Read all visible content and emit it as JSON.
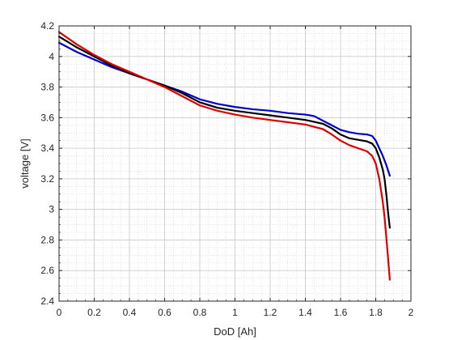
{
  "chart_data": {
    "type": "line",
    "title": "",
    "xlabel": "DoD [Ah]",
    "ylabel": "voltage [V]",
    "xlim": [
      0,
      2
    ],
    "ylim": [
      2.4,
      4.2
    ],
    "xticks": [
      "0",
      "0.2",
      "0.4",
      "0.6",
      "0.8",
      "1",
      "1.2",
      "1.4",
      "1.6",
      "1.8",
      "2"
    ],
    "yticks": [
      "2.4",
      "2.6",
      "2.8",
      "3",
      "3.2",
      "3.4",
      "3.6",
      "3.8",
      "4",
      "4.2"
    ],
    "grid": true,
    "minor_grid": true,
    "legend": "none",
    "series": [
      {
        "color": "#0000cc",
        "x": [
          0,
          0.1,
          0.2,
          0.3,
          0.4,
          0.5,
          0.6,
          0.7,
          0.8,
          0.9,
          1.0,
          1.1,
          1.2,
          1.3,
          1.4,
          1.45,
          1.5,
          1.55,
          1.6,
          1.65,
          1.7,
          1.75,
          1.78,
          1.8,
          1.82,
          1.84,
          1.86,
          1.88
        ],
        "y": [
          4.09,
          4.03,
          3.98,
          3.93,
          3.89,
          3.85,
          3.81,
          3.77,
          3.72,
          3.69,
          3.67,
          3.655,
          3.645,
          3.63,
          3.62,
          3.61,
          3.58,
          3.55,
          3.52,
          3.505,
          3.495,
          3.49,
          3.48,
          3.45,
          3.4,
          3.35,
          3.29,
          3.22
        ]
      },
      {
        "color": "#000000",
        "x": [
          0,
          0.1,
          0.2,
          0.3,
          0.4,
          0.5,
          0.6,
          0.7,
          0.8,
          0.9,
          1.0,
          1.1,
          1.2,
          1.3,
          1.4,
          1.5,
          1.55,
          1.6,
          1.65,
          1.7,
          1.75,
          1.78,
          1.8,
          1.82,
          1.84,
          1.85,
          1.86,
          1.87,
          1.88
        ],
        "y": [
          4.13,
          4.06,
          4.0,
          3.94,
          3.89,
          3.85,
          3.81,
          3.76,
          3.7,
          3.665,
          3.645,
          3.63,
          3.615,
          3.6,
          3.585,
          3.56,
          3.53,
          3.49,
          3.465,
          3.455,
          3.445,
          3.43,
          3.4,
          3.34,
          3.26,
          3.2,
          3.1,
          2.98,
          2.88
        ]
      },
      {
        "color": "#dd0000",
        "x": [
          0,
          0.1,
          0.2,
          0.3,
          0.4,
          0.5,
          0.6,
          0.7,
          0.8,
          0.9,
          1.0,
          1.1,
          1.2,
          1.3,
          1.4,
          1.5,
          1.55,
          1.6,
          1.65,
          1.7,
          1.75,
          1.78,
          1.8,
          1.82,
          1.84,
          1.85,
          1.86,
          1.87,
          1.88
        ],
        "y": [
          4.16,
          4.08,
          4.01,
          3.95,
          3.9,
          3.85,
          3.8,
          3.74,
          3.68,
          3.645,
          3.62,
          3.6,
          3.585,
          3.57,
          3.555,
          3.525,
          3.49,
          3.45,
          3.42,
          3.4,
          3.38,
          3.35,
          3.3,
          3.2,
          3.05,
          2.95,
          2.82,
          2.68,
          2.54
        ]
      }
    ]
  }
}
